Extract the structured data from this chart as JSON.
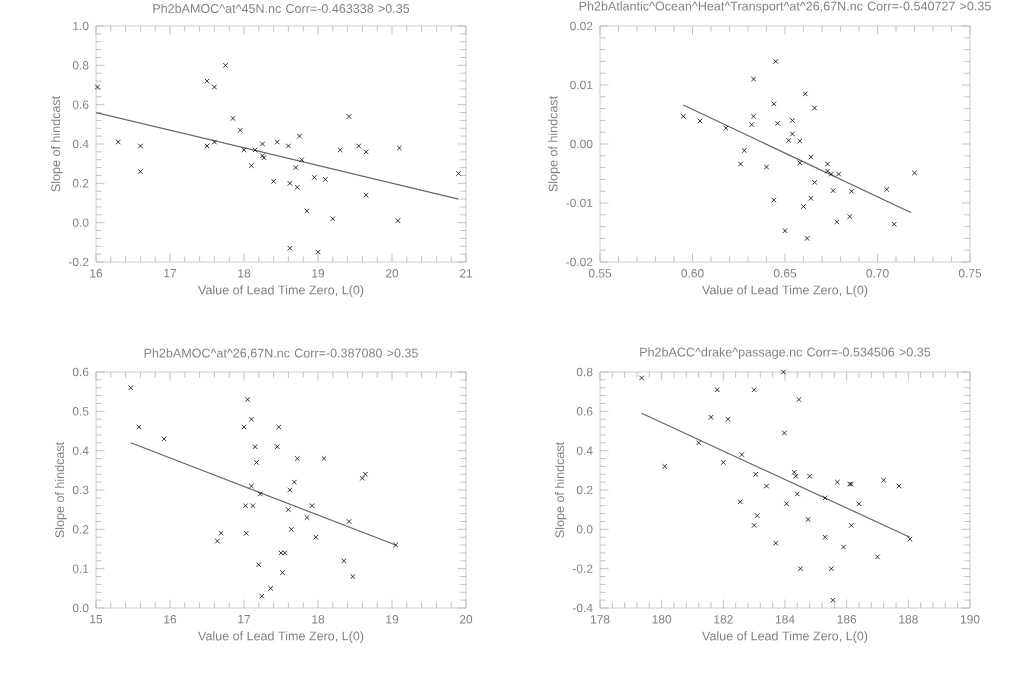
{
  "chart_data": [
    {
      "type": "scatter",
      "title": "Ph2bAMOC^at^45N.nc Corr=-0.463338 >0.35",
      "xlabel": "Value of Lead Time Zero, L(0)",
      "ylabel": "Slope of hindcast",
      "xlim": [
        16,
        21
      ],
      "ylim": [
        -0.2,
        1.0
      ],
      "xticks": [
        16,
        17,
        18,
        19,
        20,
        21
      ],
      "yticks": [
        -0.2,
        {
          "value": 0,
          "label": "0.0"
        },
        0.2,
        0.4,
        0.6,
        0.8,
        {
          "value": 1,
          "label": "1.0"
        }
      ],
      "grid": false,
      "series": [
        {
          "marker": "cross",
          "color": "#000000",
          "x": [
            16.02,
            16.3,
            16.6,
            16.6,
            17.5,
            17.6,
            17.75,
            17.5,
            17.6,
            17.85,
            17.95,
            18.0,
            18.1,
            18.15,
            18.25,
            18.25,
            18.27,
            18.4,
            18.45,
            18.6,
            18.62,
            18.7,
            18.75,
            18.78,
            18.72,
            18.85,
            18.95,
            19.1,
            18.62,
            19.0,
            19.2,
            19.3,
            19.42,
            19.55,
            19.65,
            19.65,
            20.1,
            20.08,
            20.9
          ],
          "values": [
            0.69,
            0.41,
            0.39,
            0.26,
            0.72,
            0.69,
            0.8,
            0.39,
            0.41,
            0.53,
            0.47,
            0.37,
            0.29,
            0.37,
            0.4,
            0.34,
            0.33,
            0.21,
            0.41,
            0.39,
            0.2,
            0.28,
            0.44,
            0.32,
            0.18,
            0.06,
            0.23,
            0.22,
            -0.13,
            -0.15,
            0.02,
            0.37,
            0.54,
            0.39,
            0.36,
            0.14,
            0.38,
            0.01,
            0.25
          ]
        },
        {
          "type": "line",
          "marker": "none",
          "color": "#666666",
          "x": [
            16,
            20.9
          ],
          "values": [
            0.56,
            0.12
          ]
        }
      ]
    },
    {
      "type": "scatter",
      "title": "Ph2bAtlantic^Ocean^Heat^Transport^at^26,67N.nc Corr=-0.540727 >0.35",
      "xlabel": "Value of Lead Time Zero, L(0)",
      "ylabel": "Slope of hindcast",
      "xlim": [
        0.55,
        0.75
      ],
      "ylim": [
        -0.02,
        0.02
      ],
      "xticks": [
        0.55,
        {
          "value": 0.6,
          "label": "0.60"
        },
        0.65,
        {
          "value": 0.7,
          "label": "0.70"
        },
        0.75
      ],
      "yticks": [
        {
          "value": -0.02,
          "label": "-0.02"
        },
        {
          "value": -0.01,
          "label": "-0.01"
        },
        {
          "value": 0,
          "label": "0.00"
        },
        0.01,
        0.02
      ],
      "grid": false,
      "series": [
        {
          "marker": "cross",
          "color": "#000000",
          "x": [
            0.595,
            0.604,
            0.618,
            0.628,
            0.626,
            0.632,
            0.633,
            0.633,
            0.64,
            0.644,
            0.645,
            0.646,
            0.644,
            0.65,
            0.652,
            0.654,
            0.654,
            0.658,
            0.658,
            0.661,
            0.66,
            0.662,
            0.664,
            0.664,
            0.666,
            0.666,
            0.673,
            0.673,
            0.675,
            0.676,
            0.678,
            0.679,
            0.686,
            0.685,
            0.705,
            0.709,
            0.72
          ],
          "values": [
            0.0047,
            0.0039,
            0.0027,
            -0.0011,
            -0.0034,
            0.0033,
            0.011,
            0.0047,
            -0.0039,
            0.0068,
            0.014,
            0.0035,
            -0.0095,
            -0.0147,
            0.0006,
            0.004,
            0.0017,
            0.0005,
            -0.0032,
            0.0085,
            -0.0106,
            -0.016,
            -0.0022,
            -0.0092,
            0.0061,
            -0.0065,
            -0.0034,
            -0.0046,
            -0.0051,
            -0.0079,
            -0.0132,
            -0.0051,
            -0.008,
            -0.0123,
            -0.0077,
            -0.0136,
            -0.0049
          ]
        },
        {
          "type": "line",
          "marker": "none",
          "color": "#666666",
          "x": [
            0.595,
            0.718
          ],
          "values": [
            0.0066,
            -0.0116
          ]
        }
      ]
    },
    {
      "type": "scatter",
      "title": "Ph2bAMOC^at^26,67N.nc Corr=-0.387080 >0.35",
      "xlabel": "Value of Lead Time Zero, L(0)",
      "ylabel": "Slope of hindcast",
      "xlim": [
        15,
        20
      ],
      "ylim": [
        0,
        0.6
      ],
      "xticks": [
        15,
        16,
        17,
        18,
        19,
        20
      ],
      "yticks": [
        {
          "value": 0,
          "label": "0.0"
        },
        0.1,
        0.2,
        0.3,
        0.4,
        0.5,
        0.6
      ],
      "grid": false,
      "series": [
        {
          "marker": "cross",
          "color": "#000000",
          "x": [
            15.47,
            15.58,
            15.92,
            16.64,
            16.69,
            17.0,
            17.05,
            17.1,
            17.03,
            17.02,
            17.12,
            17.1,
            17.15,
            17.17,
            17.22,
            17.2,
            17.24,
            17.36,
            17.45,
            17.47,
            17.5,
            17.55,
            17.52,
            17.6,
            17.62,
            17.64,
            17.68,
            17.72,
            17.85,
            17.92,
            17.97,
            18.08,
            18.35,
            18.42,
            18.47,
            18.6,
            18.64,
            19.05
          ],
          "values": [
            0.56,
            0.46,
            0.43,
            0.17,
            0.19,
            0.46,
            0.53,
            0.48,
            0.19,
            0.26,
            0.26,
            0.31,
            0.41,
            0.37,
            0.29,
            0.11,
            0.03,
            0.05,
            0.41,
            0.46,
            0.14,
            0.14,
            0.09,
            0.25,
            0.3,
            0.2,
            0.32,
            0.38,
            0.23,
            0.26,
            0.18,
            0.38,
            0.12,
            0.22,
            0.08,
            0.33,
            0.34,
            0.16
          ]
        },
        {
          "type": "line",
          "marker": "none",
          "color": "#666666",
          "x": [
            15.47,
            19.05
          ],
          "values": [
            0.42,
            0.16
          ]
        }
      ]
    },
    {
      "type": "scatter",
      "title": "Ph2bACC^drake^passage.nc Corr=-0.534506 >0.35",
      "xlabel": "Value of Lead Time Zero, L(0)",
      "ylabel": "Slope of hindcast",
      "xlim": [
        178,
        190
      ],
      "ylim": [
        -0.4,
        0.8
      ],
      "xticks": [
        178,
        180,
        182,
        184,
        186,
        188,
        190
      ],
      "yticks": [
        -0.4,
        -0.2,
        {
          "value": 0,
          "label": "0.0"
        },
        0.2,
        0.4,
        0.6,
        0.8
      ],
      "grid": false,
      "series": [
        {
          "marker": "cross",
          "color": "#000000",
          "x": [
            179.35,
            180.1,
            181.2,
            181.6,
            181.8,
            182.0,
            182.15,
            182.55,
            182.6,
            183.0,
            183.0,
            183.05,
            183.1,
            183.4,
            183.7,
            183.95,
            183.98,
            184.05,
            184.3,
            184.35,
            184.4,
            184.45,
            184.5,
            184.75,
            184.8,
            185.3,
            185.3,
            185.5,
            185.55,
            185.7,
            185.9,
            186.1,
            186.15,
            186.15,
            186.4,
            187.0,
            187.2,
            187.7,
            188.05
          ],
          "values": [
            0.77,
            0.32,
            0.44,
            0.57,
            0.71,
            0.34,
            0.56,
            0.14,
            0.38,
            0.02,
            0.71,
            0.28,
            0.07,
            0.22,
            -0.07,
            0.8,
            0.49,
            0.13,
            0.29,
            0.27,
            0.18,
            0.66,
            -0.2,
            0.05,
            0.27,
            0.16,
            -0.04,
            -0.2,
            -0.36,
            0.24,
            -0.09,
            0.23,
            0.23,
            0.02,
            0.13,
            -0.14,
            0.25,
            0.22,
            -0.05
          ]
        },
        {
          "type": "line",
          "marker": "none",
          "color": "#666666",
          "x": [
            179.35,
            188.05
          ],
          "values": [
            0.59,
            -0.04
          ]
        }
      ]
    }
  ]
}
